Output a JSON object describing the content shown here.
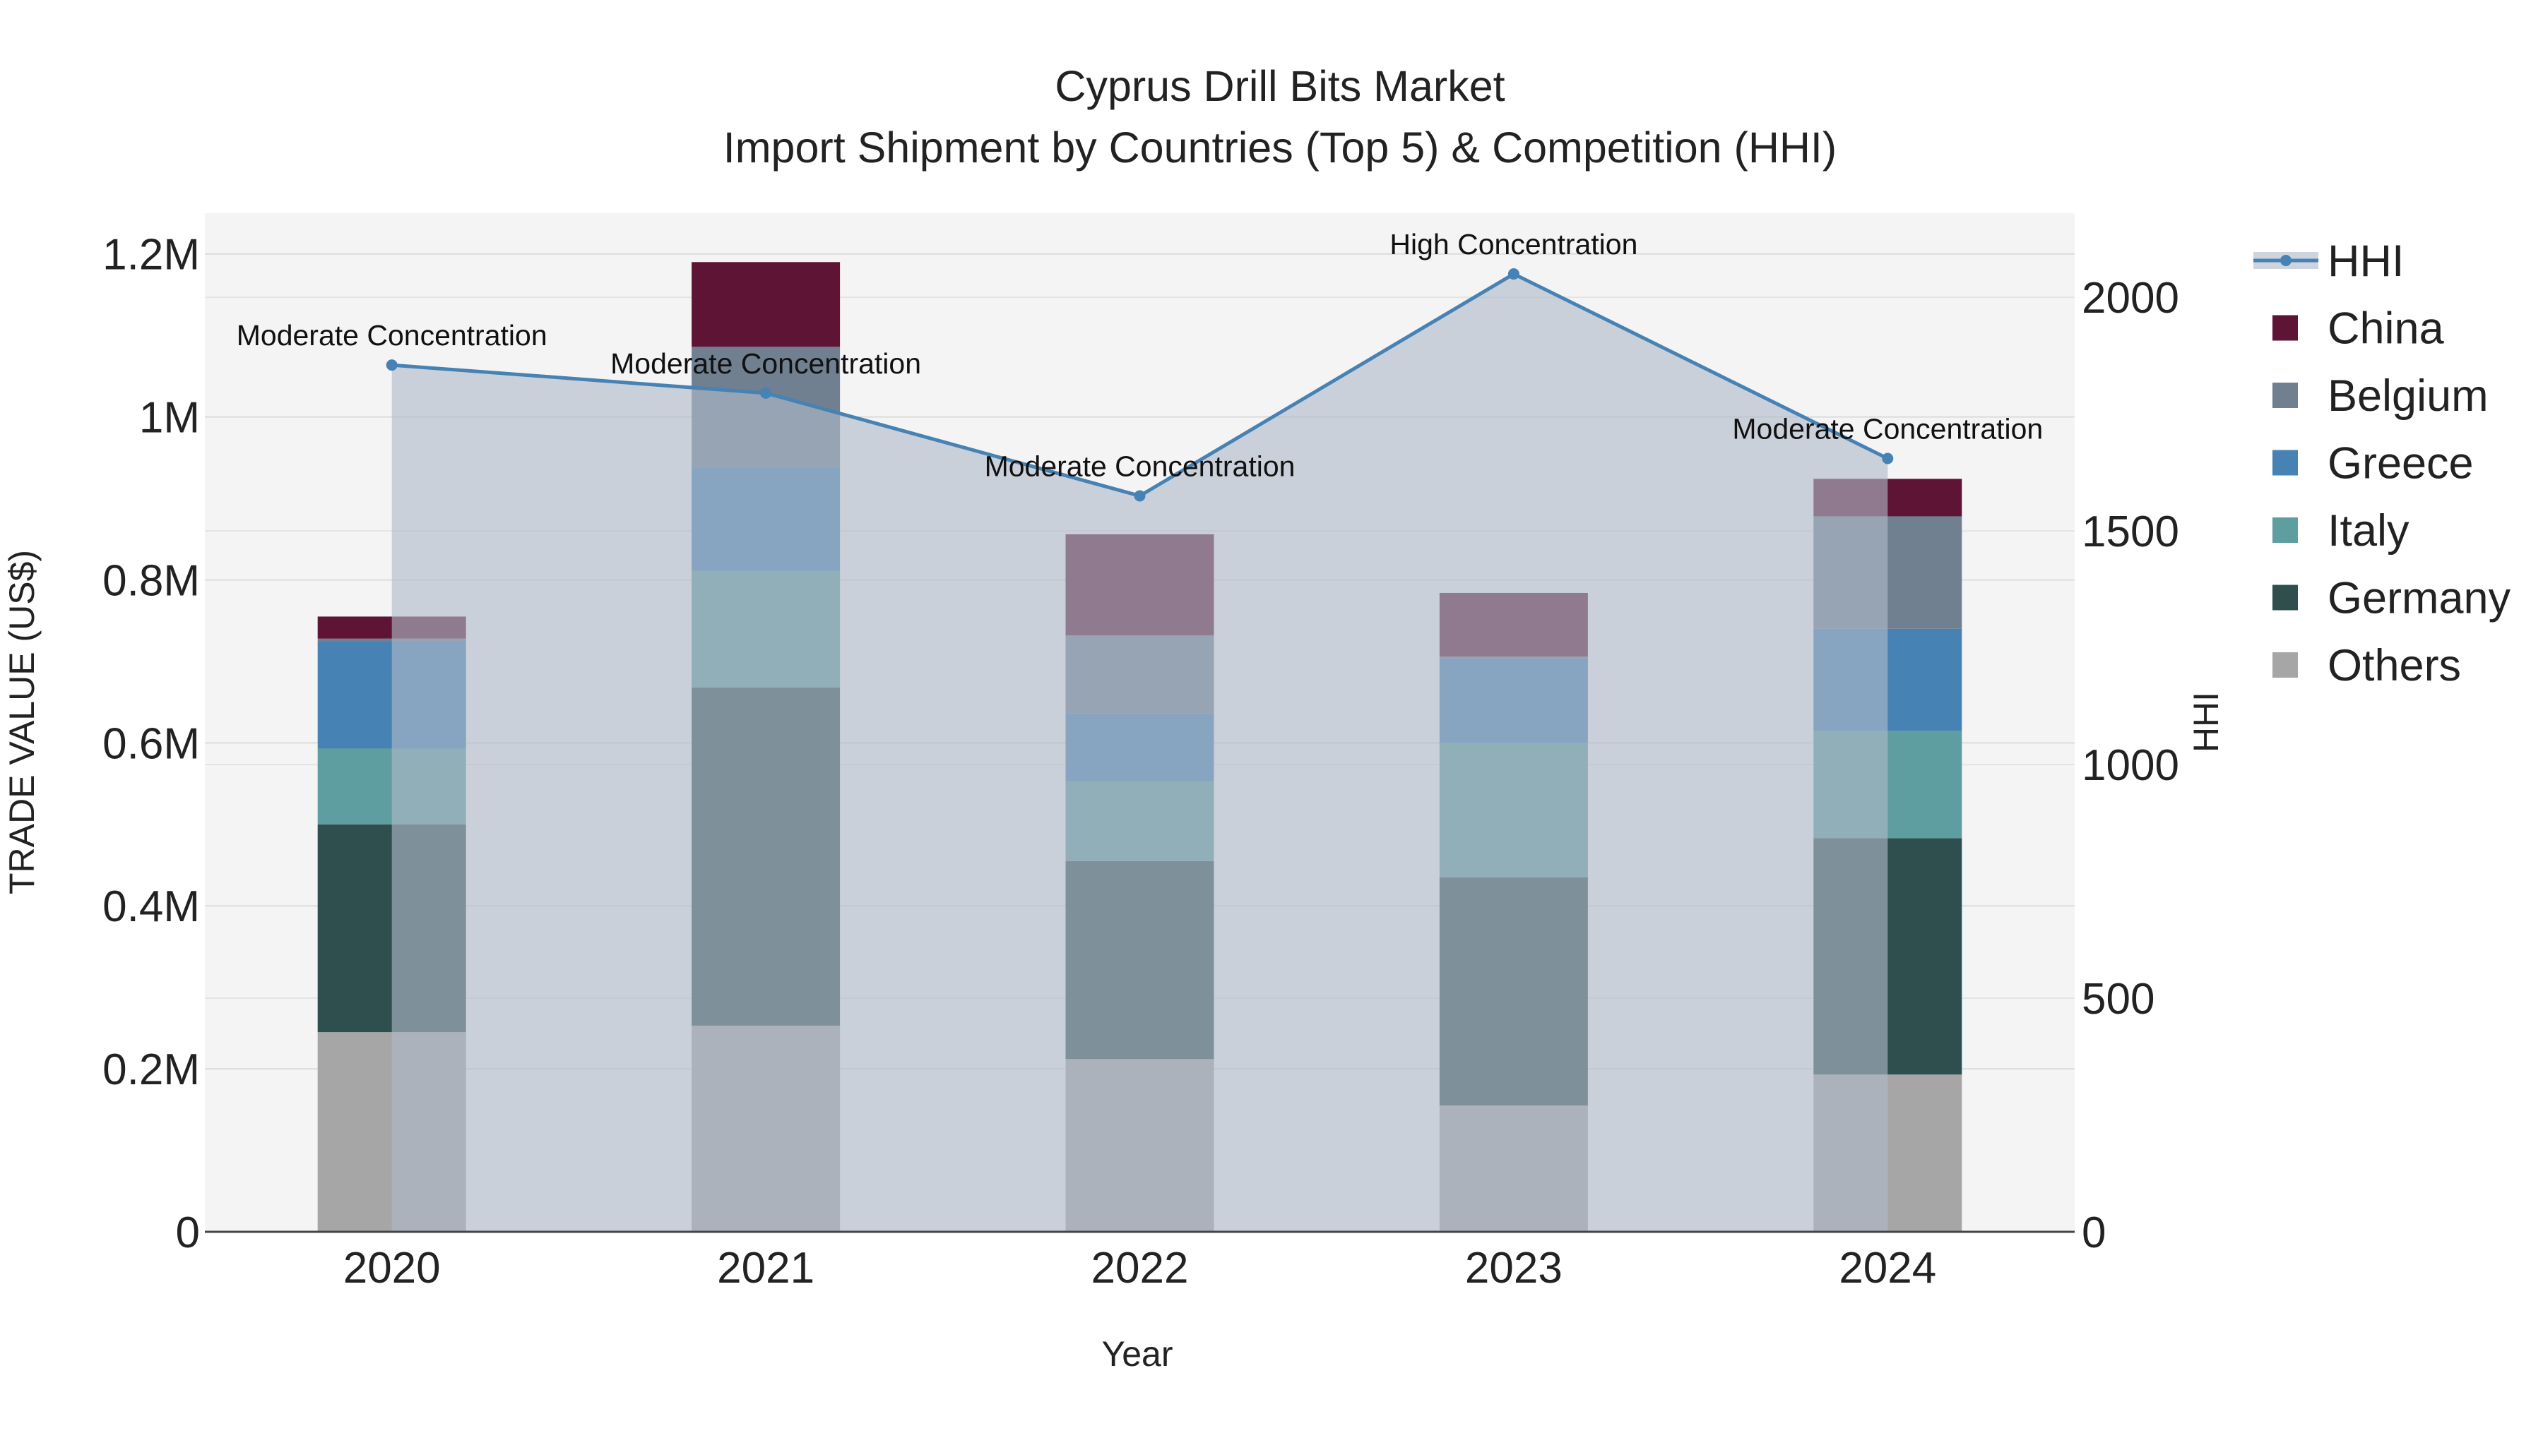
{
  "chart_data": {
    "type": "bar",
    "stacked": true,
    "title": "Cyprus Drill Bits Market",
    "subtitle": "Import Shipment by Countries (Top 5) & Competition (HHI)",
    "xlabel": "Year",
    "ylabel": "TRADE VALUE (US$)",
    "y2label": "HHI",
    "categories": [
      "2020",
      "2021",
      "2022",
      "2023",
      "2024"
    ],
    "ylim": [
      0,
      1250000
    ],
    "y_ticks": [
      0,
      200000,
      400000,
      600000,
      800000,
      1000000,
      1200000
    ],
    "y_tick_labels": [
      "0",
      "0.2M",
      "0.4M",
      "0.6M",
      "0.8M",
      "1M",
      "1.2M"
    ],
    "y2lim": [
      0,
      2180
    ],
    "y2_ticks": [
      0,
      500,
      1000,
      1500,
      2000
    ],
    "y2_tick_labels": [
      "0",
      "500",
      "1000",
      "1500",
      "2000"
    ],
    "series": [
      {
        "name": "Others",
        "color": "#a6a6a6",
        "values": [
          245000,
          253000,
          212000,
          155000,
          193000
        ]
      },
      {
        "name": "Germany",
        "color": "#2f4f4f",
        "values": [
          255000,
          415000,
          243000,
          280000,
          290000
        ]
      },
      {
        "name": "Italy",
        "color": "#5f9ea0",
        "values": [
          93000,
          143000,
          98000,
          165000,
          132000
        ]
      },
      {
        "name": "Greece",
        "color": "#4682b4",
        "values": [
          132000,
          127000,
          83000,
          103000,
          125000
        ]
      },
      {
        "name": "Belgium",
        "color": "#708090",
        "values": [
          3000,
          148000,
          96000,
          3000,
          138000
        ]
      },
      {
        "name": "China",
        "color": "#5e1434",
        "values": [
          27000,
          104000,
          124000,
          78000,
          46000
        ]
      }
    ],
    "hhi": {
      "name": "HHI",
      "color": "#4682b4",
      "values": [
        1855,
        1795,
        1575,
        2050,
        1655
      ],
      "annotations": [
        "Moderate Concentration",
        "Moderate Concentration",
        "Moderate Concentration",
        "High Concentration",
        "Moderate Concentration"
      ]
    },
    "legend": [
      "HHI",
      "China",
      "Belgium",
      "Greece",
      "Italy",
      "Germany",
      "Others"
    ],
    "legend_position": "right"
  }
}
